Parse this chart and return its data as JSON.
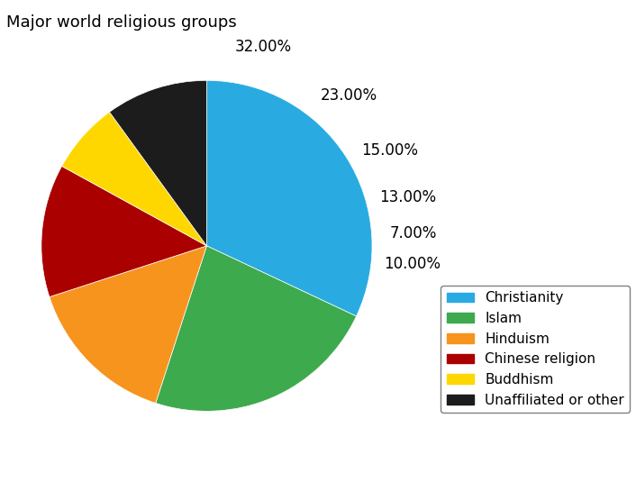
{
  "title": "Major world religious groups",
  "labels": [
    "Christianity",
    "Islam",
    "Hinduism",
    "Chinese religion",
    "Buddhism",
    "Unaffiliated or other"
  ],
  "values": [
    32.0,
    23.0,
    15.0,
    13.0,
    7.0,
    10.0
  ],
  "colors": [
    "#29ABE2",
    "#3DAA4E",
    "#F7941D",
    "#AA0000",
    "#FFD700",
    "#1C1C1C"
  ],
  "pct_labels": [
    "32.00%",
    "23.00%",
    "15.00%",
    "13.00%",
    "7.00%",
    "10.00%"
  ],
  "title_fontsize": 13,
  "label_fontsize": 12,
  "legend_fontsize": 11,
  "figsize": [
    7.06,
    5.35
  ],
  "dpi": 100
}
